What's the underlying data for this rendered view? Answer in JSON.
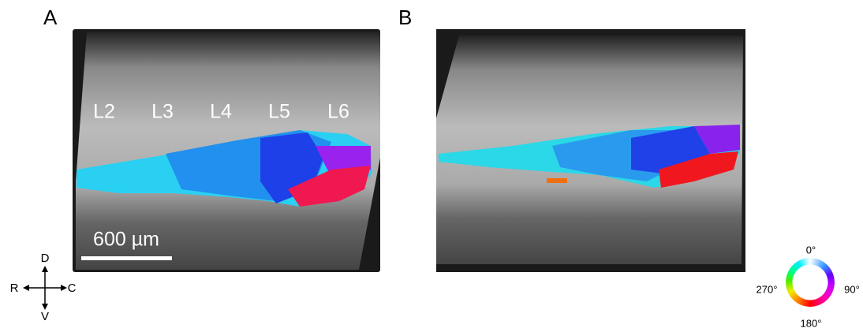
{
  "panels": [
    {
      "label": "A",
      "layers": [
        "L2",
        "L3",
        "L4",
        "L5",
        "L6"
      ],
      "scale_bar": "600 µm"
    },
    {
      "label": "B"
    }
  ],
  "compass": {
    "up": "D",
    "left": "R",
    "right": "C",
    "down": "V"
  },
  "color_wheel": {
    "top": "0°",
    "right": "90°",
    "bottom": "180°",
    "left": "270°"
  }
}
